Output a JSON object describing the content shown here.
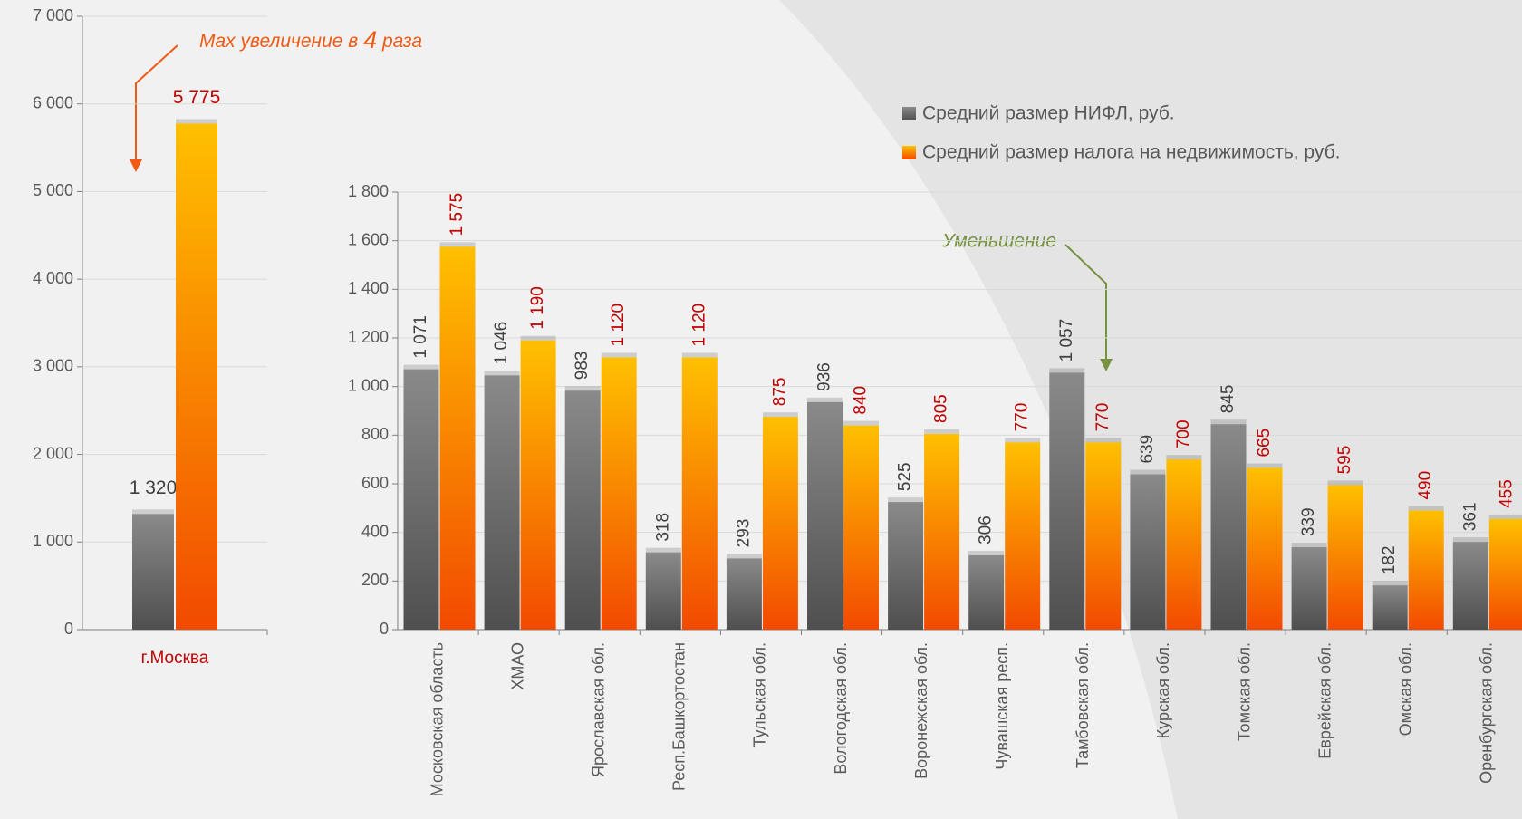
{
  "chart_data": [
    {
      "type": "bar",
      "categories": [
        "г.Москва"
      ],
      "series": [
        {
          "color": "#8a8a8a",
          "values": [
            1320
          ],
          "value_labels": [
            "1 320"
          ]
        },
        {
          "color": "#ffc000",
          "values": [
            5775
          ],
          "value_labels": [
            "5 775"
          ]
        }
      ],
      "ylim": [
        0,
        7000
      ],
      "yticks": [
        0,
        {
          "value": 1000,
          "label": "1 000"
        },
        {
          "value": 2000,
          "label": "2 000"
        },
        {
          "value": 3000,
          "label": "3 000"
        },
        {
          "value": 4000,
          "label": "4 000"
        },
        {
          "value": 5000,
          "label": "5 000"
        },
        {
          "value": 6000,
          "label": "6 000"
        },
        {
          "value": 7000,
          "label": "7 000"
        }
      ],
      "grid": true,
      "annotation": {
        "text": "Max увеличение в ",
        "emph": "4",
        "tail": " раза"
      }
    },
    {
      "type": "bar",
      "categories": [
        "Московская область",
        "ХМАО",
        "Ярославская обл.",
        "Респ.Башкортостан",
        "Тульская обл.",
        "Вологодская обл.",
        "Воронежская обл.",
        "Чувашская респ.",
        "Тамбовская обл.",
        "Курская обл.",
        "Томская обл.",
        "Еврейская обл.",
        "Омская обл.",
        "Оренбургская обл."
      ],
      "series": [
        {
          "name": "Средний размер НИФЛ, руб.",
          "color": "#8a8a8a",
          "values": [
            1071,
            1046,
            983,
            318,
            293,
            936,
            525,
            306,
            1057,
            639,
            845,
            339,
            182,
            361
          ],
          "value_labels": [
            "1 071",
            "1 046",
            "983",
            "318",
            "293",
            "936",
            "525",
            "306",
            "1 057",
            "639",
            "845",
            "339",
            "182",
            "361"
          ]
        },
        {
          "name": "Средний размер налога на недвижимость, руб.",
          "color": "#ffc000",
          "values": [
            1575,
            1190,
            1120,
            1120,
            875,
            840,
            805,
            770,
            770,
            700,
            665,
            595,
            490,
            455
          ],
          "value_labels": [
            "1 575",
            "1 190",
            "1 120",
            "1 120",
            "875",
            "840",
            "805",
            "770",
            "770",
            "700",
            "665",
            "595",
            "490",
            "455"
          ]
        }
      ],
      "ylim": [
        0,
        1800
      ],
      "yticks": [
        0,
        200,
        400,
        600,
        800,
        {
          "value": 1000,
          "label": "1 000"
        },
        {
          "value": 1200,
          "label": "1 200"
        },
        {
          "value": 1400,
          "label": "1 400"
        },
        {
          "value": 1600,
          "label": "1 600"
        },
        {
          "value": 1800,
          "label": "1 800"
        }
      ],
      "grid": true,
      "annotation": "Уменьшение"
    }
  ]
}
